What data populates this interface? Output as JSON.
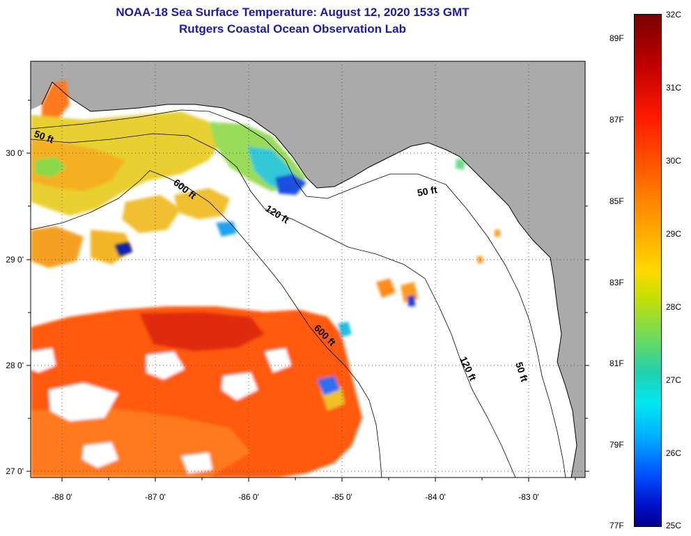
{
  "title": {
    "line1": "NOAA-18 Sea Surface Temperature:  August 12, 2020 1533 GMT",
    "line2": "Rutgers Coastal Ocean Observation Lab"
  },
  "axes": {
    "lon_labels": [
      "-88 0'",
      "-87 0'",
      "-86 0'",
      "-85 0'",
      "-84 0'",
      "-83 0'"
    ],
    "lat_labels": [
      "30 0'",
      "29 0'",
      "28 0'",
      "27 0'"
    ]
  },
  "contours": {
    "c50_west": "50 ft",
    "c600_north": "600 ft",
    "c120_north": "120 ft",
    "c50_east": "50 ft",
    "c600_south": "600 ft",
    "c120_south": "120 ft",
    "c50_south": "50 ft"
  },
  "colorbar": {
    "celsius": [
      "32C",
      "31C",
      "30C",
      "29C",
      "28C",
      "27C",
      "26C",
      "25C"
    ],
    "fahrenheit": [
      "89F",
      "87F",
      "85F",
      "83F",
      "81F",
      "79F",
      "77F"
    ]
  },
  "colors": {
    "land": "#aaaaaa",
    "ocean_nodata": "#ffffff",
    "title": "#1a1aa6"
  }
}
